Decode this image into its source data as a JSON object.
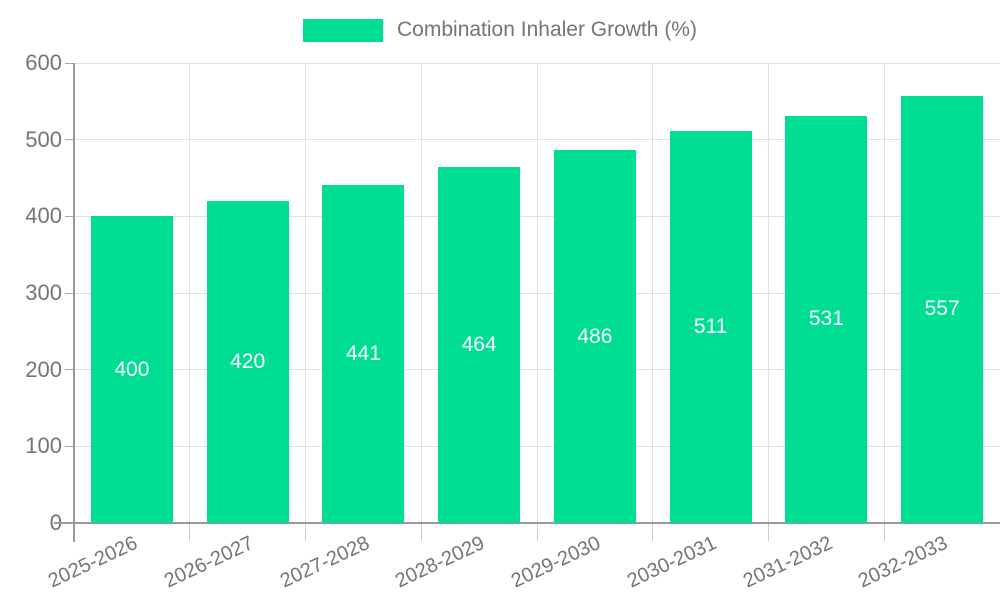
{
  "legend": {
    "label": "Combination Inhaler Growth (%)"
  },
  "colors": {
    "bar": "#00de92",
    "grid": "#e0e0e0",
    "axis": "#999999",
    "tick_text": "#757575",
    "value_label": "#ffffff"
  },
  "chart_data": {
    "type": "bar",
    "title": "",
    "series_name": "Combination Inhaler Growth (%)",
    "categories": [
      "2025-2026",
      "2026-2027",
      "2027-2028",
      "2028-2029",
      "2029-2030",
      "2030-2031",
      "2031-2032",
      "2032-2033"
    ],
    "values": [
      400,
      420,
      441,
      464,
      486,
      511,
      531,
      557
    ],
    "xlabel": "",
    "ylabel": "",
    "ylim": [
      0,
      600
    ],
    "yticks": [
      0,
      100,
      200,
      300,
      400,
      500,
      600
    ],
    "grid": true,
    "legend_position": "top",
    "bar_labels": true,
    "bar_label_position": "center"
  }
}
